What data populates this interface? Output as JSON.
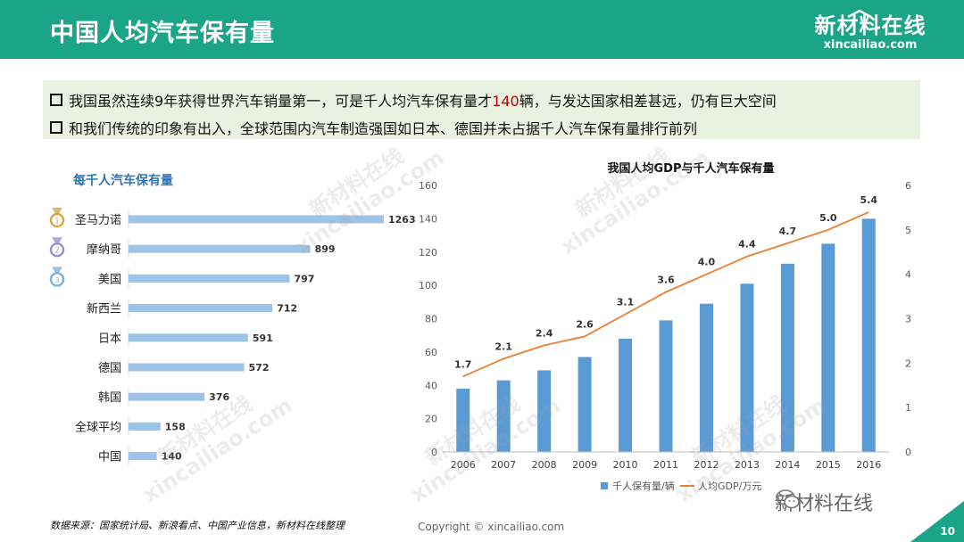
{
  "header": {
    "title": "中国人均汽车保有量"
  },
  "logo": {
    "cn": "新材料在线",
    "en": "xincailiao.com"
  },
  "bullets": [
    {
      "before": "我国虽然连续9年获得世界汽车销量第一，可是千人均汽车保有量才",
      "highlight": "140",
      "after": "辆，与发达国家相差甚远，仍有巨大空间"
    },
    {
      "text": "和我们传统的印象有出入，全球范围内汽车制造强国如日本、德国并未占据千人汽车保有量排行前列"
    }
  ],
  "chart_data": [
    {
      "type": "bar",
      "orientation": "horizontal",
      "title": "每千人汽车保有量",
      "categories": [
        "圣马力诺",
        "摩纳哥",
        "美国",
        "新西兰",
        "日本",
        "德国",
        "韩国",
        "全球平均",
        "中国"
      ],
      "values": [
        1263,
        899,
        797,
        712,
        591,
        572,
        376,
        158,
        140
      ],
      "ranks": [
        "1",
        "2",
        "3"
      ],
      "medal_colors": [
        "#d4a641",
        "#9b8fc9",
        "#7fb3d9"
      ],
      "bar_color": "#9dc3e6"
    },
    {
      "type": "bar+line",
      "title": "我国人均GDP与千人汽车保有量",
      "categories": [
        "2006",
        "2007",
        "2008",
        "2009",
        "2010",
        "2011",
        "2012",
        "2013",
        "2014",
        "2015",
        "2016"
      ],
      "series": [
        {
          "name": "千人保有量/辆",
          "type": "bar",
          "axis": "left",
          "color": "#5b9bd5",
          "values": [
            38,
            43,
            49,
            57,
            68,
            79,
            89,
            101,
            113,
            125,
            140
          ]
        },
        {
          "name": "人均GDP/万元",
          "type": "line",
          "axis": "right",
          "color": "#ed7d31",
          "values": [
            1.7,
            2.1,
            2.4,
            2.6,
            3.1,
            3.6,
            4.0,
            4.4,
            4.7,
            5.0,
            5.4
          ],
          "labels": [
            "1.7",
            "2.1",
            "2.4",
            "2.6",
            "3.1",
            "3.6",
            "4.0",
            "4.4",
            "4.7",
            "5.0",
            "5.4"
          ]
        }
      ],
      "ylim_left": [
        0,
        160
      ],
      "yticks_left": [
        "0",
        "20",
        "40",
        "60",
        "80",
        "100",
        "120",
        "140",
        "160"
      ],
      "ylim_right": [
        0,
        6
      ],
      "yticks_right": [
        "0",
        "1",
        "2",
        "3",
        "4",
        "5",
        "6"
      ],
      "grid": false,
      "legend": "bottom"
    }
  ],
  "footer": {
    "source": "数据来源：国家统计局、新浪看点、中国产业信息，新材料在线整理",
    "copyright": "Copyright © xincailiao.com",
    "wechat": "新材料在线",
    "page": "10"
  },
  "watermark": {
    "cn": "新材料在线",
    "en": "xincailiao.com"
  }
}
